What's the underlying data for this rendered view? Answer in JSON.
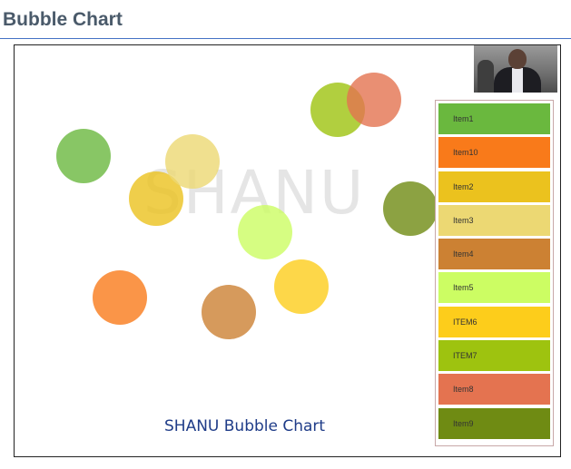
{
  "page": {
    "title": "Bubble Chart"
  },
  "chart_data": {
    "type": "bubble",
    "watermark": "SHANU",
    "caption": "SHANU Bubble Chart",
    "colors": {
      "Item1": "#6ab83e",
      "Item10": "#f97a1a",
      "Item2": "#ebc21e",
      "Item3": "#ecd873",
      "Item4": "#cc8133",
      "Item5": "#ccfd63",
      "ITEM6": "#fdcd1b",
      "ITEM7": "#9ec30f",
      "Item8": "#e47350",
      "Item9": "#6f8b13"
    },
    "legend": [
      "Item1",
      "Item10",
      "Item2",
      "Item3",
      "Item4",
      "Item5",
      "ITEM6",
      "ITEM7",
      "Item8",
      "Item9"
    ],
    "bubbles": [
      {
        "name": "Item1",
        "color": "#6ab83e",
        "opacity": 0.8,
        "x": 0.126,
        "y": 0.724
      },
      {
        "name": "Item10",
        "color": "#f97a1a",
        "opacity": 0.8,
        "x": 0.196,
        "y": 0.273
      },
      {
        "name": "Item2",
        "color": "#ebc21e",
        "opacity": 0.8,
        "x": 0.259,
        "y": 0.629
      },
      {
        "name": "Item3",
        "color": "#ecd873",
        "opacity": 0.8,
        "x": 0.326,
        "y": 0.721
      },
      {
        "name": "Item4",
        "color": "#cc8133",
        "opacity": 0.8,
        "x": 0.4,
        "y": 0.202
      },
      {
        "name": "Item5",
        "color": "#ccfd63",
        "opacity": 0.8,
        "x": 0.475,
        "y": 0.548
      },
      {
        "name": "ITEM6",
        "color": "#fdcd1b",
        "opacity": 0.8,
        "x": 0.545,
        "y": 0.262
      },
      {
        "name": "ITEM7",
        "color": "#9ec30f",
        "opacity": 0.8,
        "x": 0.612,
        "y": 0.846
      },
      {
        "name": "Item8",
        "color": "#e47350",
        "opacity": 0.8,
        "x": 0.678,
        "y": 0.871
      },
      {
        "name": "Item9",
        "color": "#6f8b13",
        "opacity": 0.8,
        "x": 0.75,
        "y": 0.658
      }
    ]
  },
  "photo": {
    "name": "author-photo"
  }
}
